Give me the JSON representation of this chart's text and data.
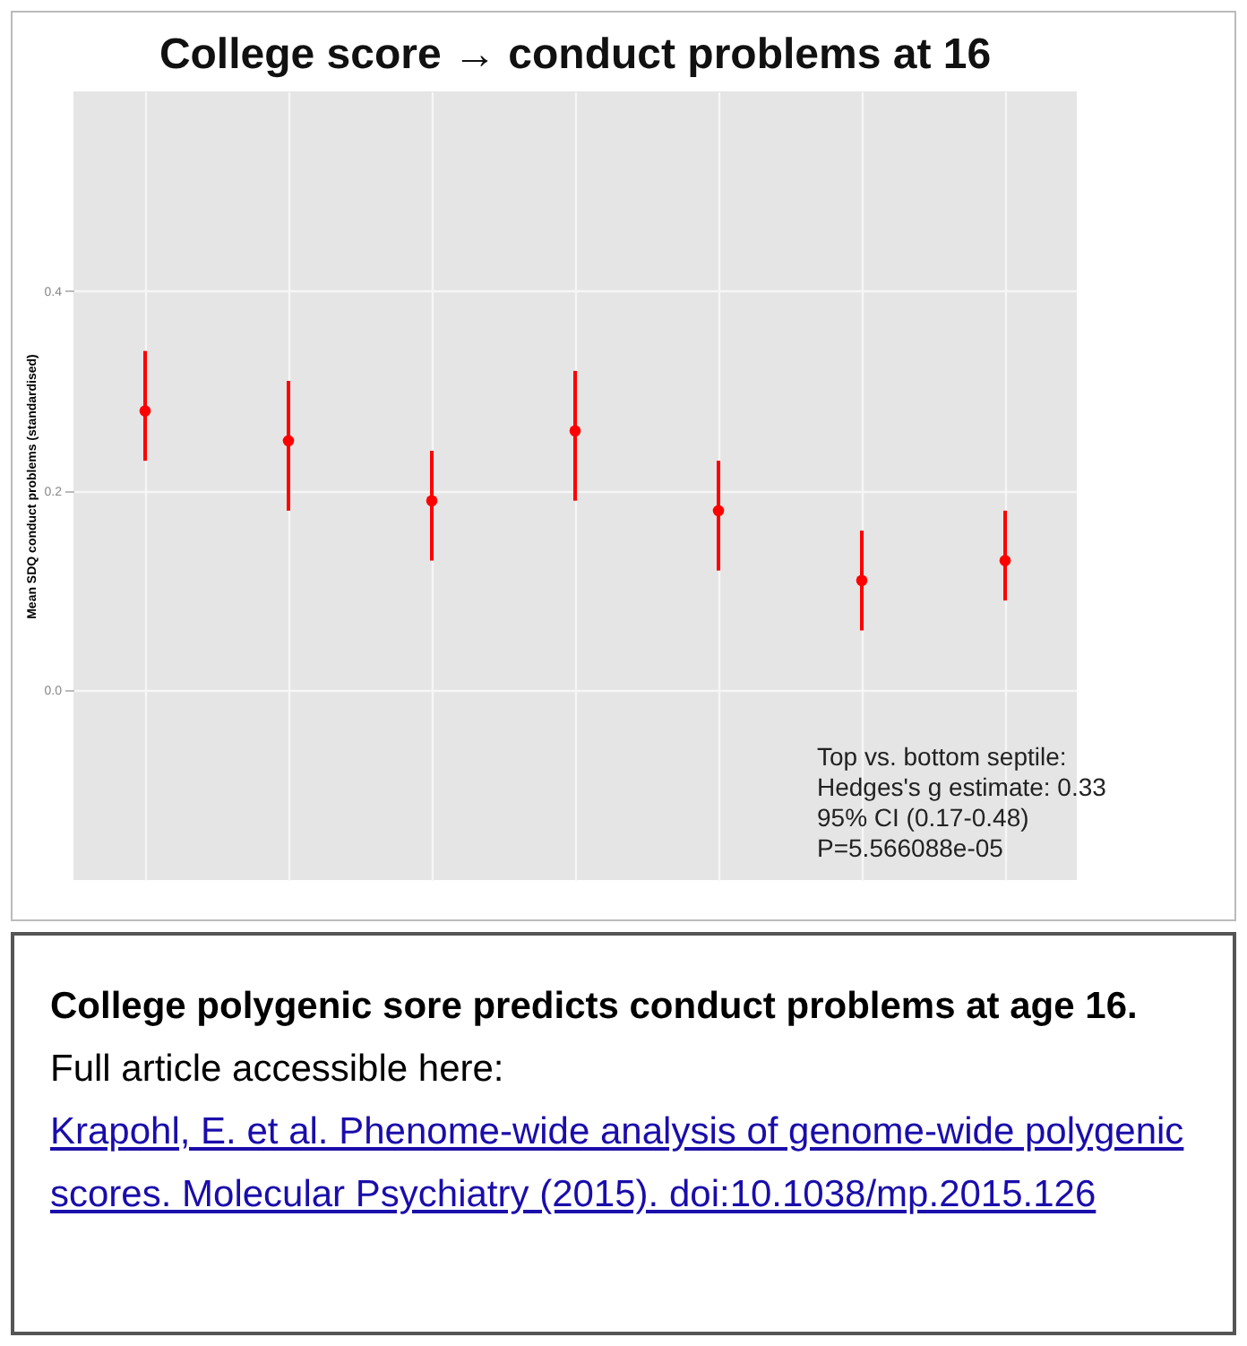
{
  "chart_data": {
    "type": "scatter",
    "title": "College score → conduct problems at 16",
    "ylabel": "Mean SDQ conduct problems (standardised)",
    "categories": [
      null,
      null,
      null,
      null,
      null,
      null,
      null
    ],
    "series": [
      {
        "color": "#ff0000",
        "values": [
          0.28,
          0.25,
          0.19,
          0.26,
          0.18,
          0.11,
          0.13
        ],
        "errors": [
          [
            0.23,
            0.34
          ],
          [
            0.18,
            0.31
          ],
          [
            0.13,
            0.24
          ],
          [
            0.19,
            0.32
          ],
          [
            0.12,
            0.23
          ],
          [
            0.06,
            0.16
          ],
          [
            0.09,
            0.18
          ]
        ]
      }
    ],
    "ylim": [
      -0.19,
      0.6
    ],
    "yticks": [
      {
        "value": 0,
        "label": "0.0"
      },
      0.2,
      0.4
    ],
    "grid": true,
    "tick_labels": "y",
    "marker": "circle",
    "annotations": [
      "Top vs. bottom septile:",
      "Hedges's g estimate: 0.33",
      "95% CI (0.17-0.48)",
      "P=5.566088e-05",
      "College polygenic sore predicts conduct problems at age 16.",
      "Full article accessible here:",
      "Krapohl, E. et al. Phenome-wide analysis of genome-wide polygenic scores. Molecular Psychiatry (2015). doi:10.1038/mp.2015.126"
    ]
  }
}
